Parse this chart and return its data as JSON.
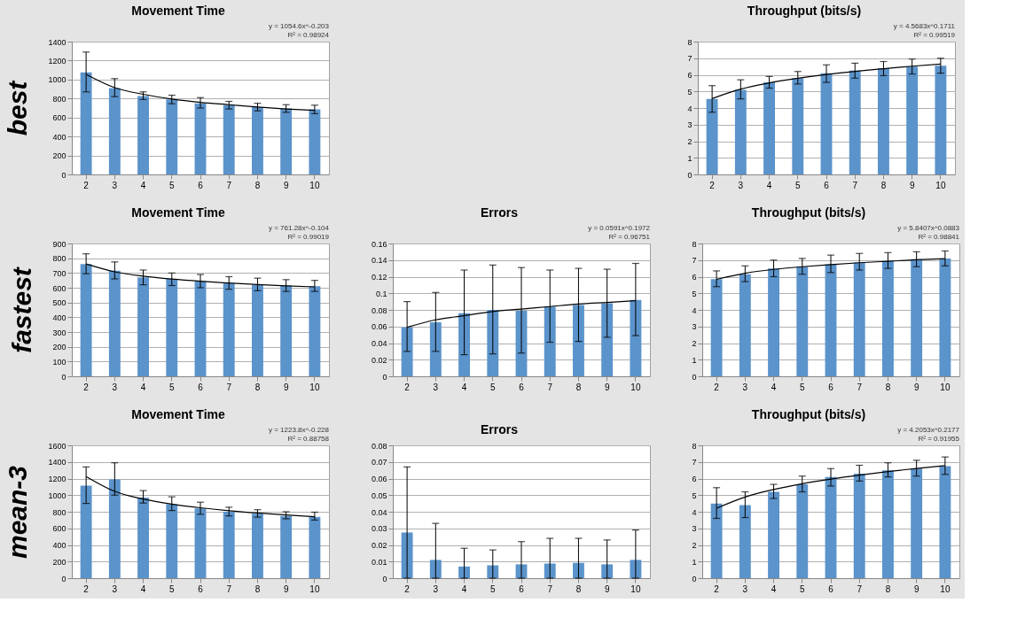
{
  "chart_data": [
    {
      "type": "bar",
      "title": "Movement Time",
      "ylabel": "best",
      "categories": [
        "2",
        "3",
        "4",
        "5",
        "6",
        "7",
        "8",
        "9",
        "10"
      ],
      "series": [
        {
          "type": "bar",
          "color": "#5b93cb",
          "values": [
            1075,
            910,
            825,
            790,
            750,
            730,
            710,
            695,
            685
          ],
          "errors": [
            [
              870,
              1290
            ],
            [
              820,
              1010
            ],
            [
              790,
              870
            ],
            [
              745,
              835
            ],
            [
              700,
              810
            ],
            [
              690,
              770
            ],
            [
              670,
              750
            ],
            [
              655,
              735
            ],
            [
              640,
              730
            ]
          ]
        },
        {
          "type": "line",
          "color": "#000000",
          "values": [
            1055,
            915,
            845,
            795,
            760,
            735,
            710,
            690,
            675
          ]
        }
      ],
      "ylim": [
        0,
        1400
      ],
      "yticks": [
        0,
        200,
        400,
        600,
        800,
        1000,
        1200,
        1400
      ],
      "grid": "y",
      "annotations": [
        "y = 1054.6x^-0.203",
        "R² = 0.98924"
      ]
    },
    {
      "type": "bar",
      "title": "Throughput (bits/s)",
      "categories": [
        "2",
        "3",
        "4",
        "5",
        "6",
        "7",
        "8",
        "9",
        "10"
      ],
      "series": [
        {
          "type": "bar",
          "color": "#5b93cb",
          "values": [
            4.55,
            5.1,
            5.55,
            5.8,
            6.1,
            6.25,
            6.4,
            6.5,
            6.55
          ],
          "errors": [
            [
              3.75,
              5.35
            ],
            [
              4.55,
              5.7
            ],
            [
              5.2,
              5.9
            ],
            [
              5.45,
              6.2
            ],
            [
              5.55,
              6.6
            ],
            [
              5.8,
              6.7
            ],
            [
              5.95,
              6.8
            ],
            [
              6.05,
              6.95
            ],
            [
              6.1,
              7.0
            ]
          ]
        },
        {
          "type": "line",
          "color": "#000000",
          "values": [
            4.57,
            5.14,
            5.51,
            5.79,
            6.02,
            6.21,
            6.37,
            6.52,
            6.65
          ]
        }
      ],
      "ylim": [
        0,
        8
      ],
      "yticks": [
        0,
        1,
        2,
        3,
        4,
        5,
        6,
        7,
        8
      ],
      "grid": "y",
      "annotations": [
        "y = 4.5683x^0.1711",
        "R² = 0.99519"
      ]
    },
    {
      "type": "bar",
      "title": "Movement Time",
      "ylabel": "fastest",
      "categories": [
        "2",
        "3",
        "4",
        "5",
        "6",
        "7",
        "8",
        "9",
        "10"
      ],
      "series": [
        {
          "type": "bar",
          "color": "#5b93cb",
          "values": [
            760,
            715,
            670,
            660,
            645,
            630,
            620,
            615,
            610
          ],
          "errors": [
            [
              695,
              830
            ],
            [
              660,
              775
            ],
            [
              620,
              720
            ],
            [
              615,
              700
            ],
            [
              600,
              690
            ],
            [
              590,
              675
            ],
            [
              580,
              665
            ],
            [
              575,
              655
            ],
            [
              575,
              650
            ]
          ]
        },
        {
          "type": "line",
          "color": "#000000",
          "values": [
            761,
            708,
            679,
            659,
            644,
            632,
            622,
            613,
            606
          ]
        }
      ],
      "ylim": [
        0,
        900
      ],
      "yticks": [
        0,
        100,
        200,
        300,
        400,
        500,
        600,
        700,
        800,
        900
      ],
      "grid": "y",
      "annotations": [
        "y = 761.28x^-0.104",
        "R² = 0.99019"
      ]
    },
    {
      "type": "bar",
      "title": "Errors",
      "categories": [
        "2",
        "3",
        "4",
        "5",
        "6",
        "7",
        "8",
        "9",
        "10"
      ],
      "series": [
        {
          "type": "bar",
          "color": "#5b93cb",
          "values": [
            0.059,
            0.065,
            0.076,
            0.08,
            0.079,
            0.084,
            0.086,
            0.088,
            0.092
          ],
          "errors": [
            [
              0.03,
              0.09
            ],
            [
              0.03,
              0.101
            ],
            [
              0.026,
              0.128
            ],
            [
              0.027,
              0.134
            ],
            [
              0.028,
              0.131
            ],
            [
              0.041,
              0.128
            ],
            [
              0.042,
              0.13
            ],
            [
              0.047,
              0.129
            ],
            [
              0.049,
              0.136
            ]
          ]
        },
        {
          "type": "line",
          "color": "#000000",
          "values": [
            0.059,
            0.068,
            0.073,
            0.078,
            0.081,
            0.084,
            0.087,
            0.089,
            0.091
          ]
        }
      ],
      "ylim": [
        0,
        0.16
      ],
      "yticks": [
        0,
        0.02,
        0.04,
        0.06,
        0.08,
        0.1,
        0.12,
        0.14,
        0.16
      ],
      "grid": "y",
      "annotations": [
        "y = 0.0591x^0.1972",
        "R² = 0.96751"
      ]
    },
    {
      "type": "bar",
      "title": "Throughput (bits/s)",
      "categories": [
        "2",
        "3",
        "4",
        "5",
        "6",
        "7",
        "8",
        "9",
        "10"
      ],
      "series": [
        {
          "type": "bar",
          "color": "#5b93cb",
          "values": [
            5.85,
            6.15,
            6.5,
            6.6,
            6.75,
            6.85,
            6.95,
            7.05,
            7.1
          ],
          "errors": [
            [
              5.4,
              6.35
            ],
            [
              5.7,
              6.65
            ],
            [
              6.0,
              7.0
            ],
            [
              6.15,
              7.1
            ],
            [
              6.25,
              7.3
            ],
            [
              6.4,
              7.4
            ],
            [
              6.5,
              7.45
            ],
            [
              6.6,
              7.5
            ],
            [
              6.65,
              7.55
            ]
          ]
        },
        {
          "type": "line",
          "color": "#000000",
          "values": [
            5.84,
            6.21,
            6.44,
            6.6,
            6.73,
            6.84,
            6.93,
            7.02,
            7.09
          ]
        }
      ],
      "ylim": [
        0,
        8
      ],
      "yticks": [
        0,
        1,
        2,
        3,
        4,
        5,
        6,
        7,
        8
      ],
      "grid": "y",
      "annotations": [
        "y = 5.8407x^0.0883",
        "R² = 0.98841"
      ]
    },
    {
      "type": "bar",
      "title": "Movement Time",
      "ylabel": "mean-3",
      "categories": [
        "2",
        "3",
        "4",
        "5",
        "6",
        "7",
        "8",
        "9",
        "10"
      ],
      "series": [
        {
          "type": "bar",
          "color": "#5b93cb",
          "values": [
            1115,
            1190,
            970,
            890,
            840,
            800,
            775,
            750,
            740
          ],
          "errors": [
            [
              900,
              1340
            ],
            [
              1000,
              1390
            ],
            [
              905,
              1055
            ],
            [
              815,
              980
            ],
            [
              770,
              915
            ],
            [
              750,
              855
            ],
            [
              735,
              825
            ],
            [
              715,
              800
            ],
            [
              700,
              795
            ]
          ]
        },
        {
          "type": "line",
          "color": "#000000",
          "values": [
            1224,
            1045,
            953,
            892,
            848,
            813,
            785,
            762,
            741
          ]
        }
      ],
      "ylim": [
        0,
        1600
      ],
      "yticks": [
        0,
        200,
        400,
        600,
        800,
        1000,
        1200,
        1400,
        1600
      ],
      "grid": "y",
      "annotations": [
        "y = 1223.8x^-0.228",
        "R² = 0.88758"
      ]
    },
    {
      "type": "bar",
      "title": "Errors",
      "categories": [
        "2",
        "3",
        "4",
        "5",
        "6",
        "7",
        "8",
        "9",
        "10"
      ],
      "series": [
        {
          "type": "bar",
          "color": "#5b93cb",
          "values": [
            0.0275,
            0.011,
            0.007,
            0.0078,
            0.0083,
            0.0088,
            0.0092,
            0.0083,
            0.011
          ],
          "errors": [
            [
              0,
              0.067
            ],
            [
              0,
              0.033
            ],
            [
              0,
              0.018
            ],
            [
              0,
              0.017
            ],
            [
              0,
              0.022
            ],
            [
              0,
              0.024
            ],
            [
              0,
              0.024
            ],
            [
              0,
              0.023
            ],
            [
              0,
              0.029
            ]
          ]
        }
      ],
      "ylim": [
        0,
        0.08
      ],
      "yticks": [
        0,
        0.01,
        0.02,
        0.03,
        0.04,
        0.05,
        0.06,
        0.07,
        0.08
      ],
      "grid": "y"
    },
    {
      "type": "bar",
      "title": "Throughput (bits/s)",
      "categories": [
        "2",
        "3",
        "4",
        "5",
        "6",
        "7",
        "8",
        "9",
        "10"
      ],
      "series": [
        {
          "type": "bar",
          "color": "#5b93cb",
          "values": [
            4.5,
            4.4,
            5.2,
            5.65,
            6.1,
            6.3,
            6.5,
            6.6,
            6.75
          ],
          "errors": [
            [
              3.6,
              5.45
            ],
            [
              3.65,
              5.2
            ],
            [
              4.8,
              5.65
            ],
            [
              5.2,
              6.15
            ],
            [
              5.55,
              6.6
            ],
            [
              5.85,
              6.8
            ],
            [
              6.1,
              6.95
            ],
            [
              6.15,
              7.1
            ],
            [
              6.25,
              7.3
            ]
          ]
        },
        {
          "type": "line",
          "color": "#000000",
          "values": [
            4.21,
            4.89,
            5.34,
            5.69,
            5.97,
            6.21,
            6.42,
            6.61,
            6.78
          ]
        }
      ],
      "ylim": [
        0,
        8
      ],
      "yticks": [
        0,
        1,
        2,
        3,
        4,
        5,
        6,
        7,
        8
      ],
      "grid": "y",
      "annotations": [
        "y = 4.2053x^0.2177",
        "R² = 0.91955"
      ]
    }
  ]
}
